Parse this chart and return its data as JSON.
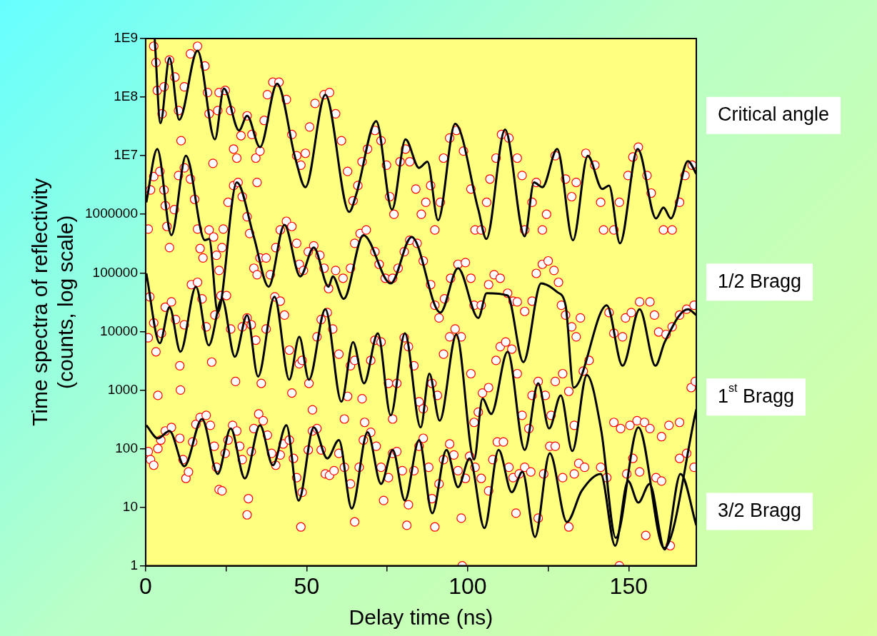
{
  "chart_data": {
    "type": "scatter",
    "xlabel": "Delay time (ns)",
    "ylabel": "Time spectra of reflectivity\n(counts, log scale)",
    "xlim": [
      0,
      171
    ],
    "ylim": [
      1,
      1000000000
    ],
    "log": "y",
    "grid": false,
    "legend": false,
    "xticks": [
      0,
      {
        "value": 25,
        "label": null
      },
      50,
      {
        "value": 75,
        "label": null
      },
      100,
      {
        "value": 125,
        "label": null
      },
      150
    ],
    "yticks": [
      1,
      10,
      100,
      1000,
      10000,
      100000,
      1000000,
      {
        "value": 10000000,
        "label": "1E7"
      },
      {
        "value": 100000000,
        "label": "1E8"
      },
      {
        "value": 1000000000,
        "label": "1E9"
      }
    ],
    "series": [
      {
        "name": "Critical angle",
        "type": "scatter",
        "marker": "circle",
        "color": "#ff0000",
        "x": [
          2.5,
          3.2,
          3.6,
          5.1,
          5.7,
          7.4,
          9.1,
          10.2,
          11,
          12,
          13.9,
          16.1,
          18.4,
          19.2,
          19.7,
          20.9,
          22.4,
          22.8,
          24.7,
          26.4,
          27.3,
          28.3,
          29.6,
          31.5,
          33,
          34.2,
          34.6,
          35.5,
          36.8,
          37.8,
          39.5,
          41.4,
          43.7,
          45.4,
          46.9,
          48.2,
          49.6,
          50.9,
          52.6,
          55.4,
          57.1,
          59,
          60.8,
          62.7,
          64.4,
          65.9,
          67.2,
          68.9,
          71.2,
          73.1,
          74.8,
          75.8,
          77.1,
          79,
          80.7,
          82,
          83.9,
          85.6,
          87,
          88.5,
          89.8,
          91.5,
          92.5,
          94.4,
          96.5,
          98.7,
          101,
          102.3,
          104.2,
          105.9,
          106.9,
          108.8,
          110.5,
          112.8,
          115.4,
          116.9,
          117.7,
          120,
          121.3,
          123.2,
          124.5,
          127.2,
          130.4,
          132.3,
          133.7,
          136.7,
          139.5,
          141.3,
          142.2,
          145.4,
          147.1,
          149.8,
          151.3,
          153,
          155.7,
          157,
          160.8,
          163.5,
          165.8,
          167.5,
          169.7
        ],
        "values": [
          740000000.0,
          390000000.0,
          130000000.0,
          52000000.0,
          150000000.0,
          430000000.0,
          220000000.0,
          59000000.0,
          18000000.0,
          150000000.0,
          550000000.0,
          740000000.0,
          340000000.0,
          120000000.0,
          52000000.0,
          7400000.0,
          59000000.0,
          120000000.0,
          130000000.0,
          59000000.0,
          13000000.0,
          9100000.0,
          22000000.0,
          48000000.0,
          23000000.0,
          9100000.0,
          3500000.0,
          12000000.0,
          40000000.0,
          110000000.0,
          180000000.0,
          180000000.0,
          91000000.0,
          23000000.0,
          10000000.0,
          6900000.0,
          11000000.0,
          31000000.0,
          78000000.0,
          110000000.0,
          120000000.0,
          52000000.0,
          18000000.0,
          5400000.0,
          1700000.0,
          3100000.0,
          7900000.0,
          13000000.0,
          27000000.0,
          18000000.0,
          6900000.0,
          2000000.0,
          1000000.0,
          7900000.0,
          13000000.0,
          7900000.0,
          2700000.0,
          1000000.0,
          1600000.0,
          3100000.0,
          540000.0,
          1600000.0,
          9100000.0,
          20000000.0,
          27000000.0,
          12000000.0,
          2700000.0,
          540000.0,
          540000.0,
          1600000.0,
          4000000.0,
          9100000.0,
          23000000.0,
          20000000.0,
          9100000.0,
          4600000.0,
          540000.0,
          1600000.0,
          3500000.0,
          540000.0,
          1000000.0,
          10000000.0,
          4000000.0,
          2000000.0,
          3500000.0,
          11000000.0,
          6900000.0,
          1600000.0,
          540000.0,
          540000.0,
          1600000.0,
          4600000.0,
          9500000.0,
          14000000.0,
          4600000.0,
          2300000.0,
          540000.0,
          540000.0,
          1600000.0,
          4600000.0,
          6900000.0
        ]
      },
      {
        "name": "1/2 Bragg",
        "type": "scatter",
        "marker": "circle",
        "color": "#ff0000",
        "x": [
          0.8,
          1.5,
          2.5,
          4.4,
          5.7,
          6.1,
          6.6,
          7.4,
          8.9,
          10.2,
          12,
          13.9,
          15.2,
          16.1,
          16.9,
          17.8,
          19.7,
          21.1,
          22,
          22.8,
          23.7,
          24.1,
          25.6,
          27.3,
          28.7,
          30,
          31.5,
          32.3,
          33.6,
          34.6,
          35.5,
          37.4,
          38.7,
          40.4,
          41.8,
          43.7,
          45.4,
          46.9,
          47.7,
          49,
          50.5,
          52.2,
          54.1,
          55.4,
          56.8,
          59,
          61.3,
          63.6,
          64.9,
          66.6,
          68.5,
          71.2,
          72.5,
          74.4,
          76.7,
          78.4,
          80.3,
          82,
          84.3,
          86.2,
          88.5,
          89.8,
          91.1,
          92.8,
          94.7,
          97,
          99.3,
          101,
          102,
          104.2,
          106.5,
          108.2,
          110.1,
          112.4,
          114.1,
          115.4,
          117.7,
          120,
          121.3,
          123.2,
          125,
          126.8,
          128.2,
          129.1,
          130.4,
          132.3,
          133.7,
          135,
          143.9,
          145.4,
          148.1,
          149,
          150.8,
          153.4,
          156.6,
          158,
          159.3,
          161.6,
          163.5,
          165.8,
          168,
          170.3
        ],
        "values": [
          560000.0,
          2600000.0,
          4400000.0,
          5400000.0,
          2600000.0,
          1400000.0,
          620000.0,
          270000.0,
          1200000.0,
          4600000.0,
          6200000.0,
          4000000.0,
          1800000.0,
          560000.0,
          260000.0,
          180000.0,
          540000.0,
          410000.0,
          200000.0,
          110000.0,
          270000.0,
          560000.0,
          1600000.0,
          3100000.0,
          3500000.0,
          2000000.0,
          910000.0,
          470000.0,
          120000.0,
          93000.0,
          180000.0,
          180000.0,
          93000.0,
          270000.0,
          540000.0,
          760000.0,
          620000.0,
          320000.0,
          140000.0,
          110000.0,
          230000.0,
          290000.0,
          200000.0,
          120000.0,
          54000.0,
          110000.0,
          81000.0,
          120000.0,
          320000.0,
          470000.0,
          540000.0,
          230000.0,
          140000.0,
          81000.0,
          81000.0,
          120000.0,
          230000.0,
          360000.0,
          320000.0,
          160000.0,
          63000.0,
          28000.0,
          17000.0,
          36000.0,
          81000.0,
          140000.0,
          150000.0,
          81000.0,
          28000.0,
          28000.0,
          63000.0,
          93000.0,
          81000.0,
          45000.0,
          33000.0,
          32000.0,
          22000.0,
          33000.0,
          98000.0,
          140000.0,
          160000.0,
          110000.0,
          69000.0,
          28000.0,
          19000.0,
          12000.0,
          8100.0,
          17000.0,
          21000.0,
          9300.0,
          8100.0,
          17000.0,
          21000.0,
          32000.0,
          32000.0,
          19000.0,
          9800.0,
          8900.0,
          12000.0,
          19000.0,
          24000.0,
          28000.0
        ]
      },
      {
        "name": "1$^{st}$ Bragg",
        "type": "scatter",
        "marker": "circle",
        "color": "#ff0000",
        "x": [
          0.8,
          1.3,
          2.5,
          3.2,
          3.8,
          4.9,
          6.1,
          8,
          9.3,
          10.6,
          10.8,
          12,
          14.2,
          16.1,
          17.5,
          18.8,
          20.5,
          21.5,
          23.4,
          25.1,
          26.4,
          27.9,
          30,
          31.5,
          32.8,
          34.2,
          35.9,
          37.4,
          40.1,
          41.8,
          43.1,
          44.6,
          45.4,
          47.7,
          48.6,
          50.7,
          51.8,
          53.2,
          54.5,
          56.4,
          58.1,
          60,
          61.7,
          62.7,
          63.6,
          64.9,
          67.2,
          68,
          69.9,
          71.2,
          73.1,
          75.4,
          76.7,
          78,
          80.3,
          81.6,
          83.3,
          84.9,
          86.2,
          88.9,
          90.6,
          92.5,
          94.4,
          96.1,
          98,
          101,
          102,
          103.3,
          104.6,
          106.5,
          108.8,
          110.1,
          111.8,
          113.7,
          115.4,
          116.9,
          119,
          120,
          121.9,
          124.1,
          125.9,
          127.2,
          129.5,
          131.4,
          133.1,
          135.9,
          137.7,
          145.4,
          147.5,
          150.4,
          152.6,
          154.9,
          156.6,
          160.2,
          162.5,
          165.8,
          169.4,
          170.7
        ],
        "values": [
          7800.0,
          39000.0,
          14000.0,
          4500.0,
          810,
          9300.0,
          26000.0,
          32000.0,
          16000.0,
          2600.0,
          1000.0,
          13000.0,
          63000.0,
          69000.0,
          36000.0,
          12000.0,
          3000.0,
          19000.0,
          41000.0,
          41000.0,
          11000.0,
          1400.0,
          12000.0,
          17000.0,
          13000.0,
          7100.0,
          1300.0,
          11000.0,
          39000.0,
          33000.0,
          19000.0,
          4800.0,
          890,
          2800.0,
          3200.0,
          1300.0,
          460,
          8100.0,
          16000.0,
          21000.0,
          11000.0,
          4100.0,
          320,
          780,
          2600.0,
          3200.0,
          710,
          280,
          3200.0,
          7100.0,
          6600.0,
          1300.0,
          320,
          1300.0,
          7800.0,
          5500.0,
          2600.0,
          630,
          480,
          1300.0,
          810,
          4100.0,
          8100.0,
          11000.0,
          8100.0,
          1900.0,
          280,
          420,
          890,
          1100.0,
          3200.0,
          5500.0,
          6600.0,
          5000.0,
          1900.0,
          370,
          220,
          810,
          1400.0,
          810,
          370,
          1400.0,
          1900.0,
          950,
          250,
          2100.0,
          3200.0,
          280,
          220,
          250,
          300,
          280,
          220,
          160,
          250,
          280,
          1100.0,
          1400.0
        ]
      },
      {
        "name": "3/2 Bragg",
        "type": "scatter",
        "marker": "circle",
        "color": "#ff0000",
        "x": [
          0.8,
          1.5,
          2.5,
          3.8,
          4.7,
          6.1,
          8,
          10.6,
          11.6,
          12.5,
          13.3,
          14.6,
          15.6,
          16.9,
          18.8,
          20.1,
          21.3,
          22,
          22.8,
          23.7,
          24.7,
          25.6,
          27,
          28.3,
          29.2,
          30,
          31.5,
          31.9,
          32.8,
          33.6,
          35.1,
          36.5,
          37.8,
          39.1,
          40.4,
          41.8,
          42.7,
          44.6,
          45.9,
          46.9,
          48.2,
          48.6,
          50.5,
          51.8,
          53.2,
          54.5,
          55.8,
          57.1,
          58.5,
          60,
          61.7,
          63.6,
          64.9,
          66.3,
          67.6,
          69.9,
          71.6,
          73.1,
          73.9,
          75.4,
          76.7,
          78,
          79.7,
          81.1,
          81.6,
          83.3,
          84.9,
          86.2,
          87.9,
          88.9,
          89.8,
          91.1,
          92.5,
          94.4,
          95.7,
          97,
          98,
          98.3,
          99.3,
          100.6,
          102.3,
          104.2,
          106.5,
          107.8,
          109.2,
          111.1,
          112.8,
          114.1,
          115,
          116,
          117.7,
          119.6,
          121.9,
          123.6,
          125.5,
          127.2,
          129.5,
          131.4,
          133.1,
          134.5,
          136.3,
          141.3,
          143.2,
          147.1,
          149.4,
          151.3,
          153.4,
          155.3,
          158.5,
          160.2,
          162.9,
          165.8,
          168,
          170.3
        ],
        "values": [
          89,
          65,
          52,
          100,
          140,
          200,
          230,
          150,
          65,
          31,
          40,
          130,
          260,
          340,
          370,
          250,
          110,
          48,
          20,
          19,
          83,
          140,
          250,
          200,
          110,
          65,
          7.4,
          14,
          89,
          220,
          390,
          300,
          170,
          83,
          52,
          78,
          120,
          140,
          68,
          32,
          4.6,
          18,
          95,
          200,
          220,
          95,
          37,
          35,
          42,
          83,
          48,
          25,
          5.6,
          48,
          140,
          190,
          110,
          48,
          13,
          32,
          83,
          89,
          42,
          4.9,
          11,
          42,
          110,
          150,
          48,
          14,
          4.6,
          25,
          65,
          120,
          78,
          42,
          6.5,
          1,
          31,
          74,
          48,
          31,
          19,
          65,
          130,
          130,
          48,
          32,
          7.9,
          37,
          48,
          40,
          6.5,
          37,
          110,
          110,
          32,
          4.6,
          37,
          56,
          48,
          48,
          32,
          1,
          37,
          68,
          40,
          3.3,
          32,
          28,
          2.2,
          68,
          83,
          48
        ]
      },
      {
        "type": "line",
        "marker": "none",
        "line_style": "solid",
        "color": "#000000",
        "x": [
          2.8,
          4.6,
          7.4,
          10.4,
          16.1,
          21.5,
          24.3,
          29,
          31.5,
          35.5,
          40.8,
          46.5,
          49.6,
          55.8,
          63.2,
          65.4,
          71.6,
          76.5,
          80.7,
          84.9,
          87.5,
          90.8,
          96.1,
          103.3,
          105.8,
          111.6,
          117.7,
          120.6,
          123.2,
          127.8,
          132.7,
          137.3,
          141.8,
          143.9,
          147.3,
          152.8,
          158.5,
          160.8,
          163.1,
          168.4,
          171
        ],
        "values": [
          1000000000.0,
          36000000.0,
          470000000.0,
          41000000.0,
          620000000.0,
          19000000.0,
          140000000.0,
          27000000.0,
          48000000.0,
          14000000.0,
          170000000.0,
          8900000.0,
          2900000.0,
          110000000.0,
          1100000.0,
          2200000.0,
          39000000.0,
          1200000.0,
          19000000.0,
          6200000.0,
          7900000.0,
          790000.0,
          35000000.0,
          1200000.0,
          380000.0,
          28000000.0,
          420000.0,
          3500000.0,
          2900000.0,
          13000000.0,
          360000.0,
          10000000.0,
          2700000.0,
          3100000.0,
          320000.0,
          13000000.0,
          850000.0,
          1300000.0,
          850000.0,
          8100000.0,
          4900000.0
        ]
      },
      {
        "type": "line",
        "marker": "none",
        "line_style": "solid",
        "color": "#000000",
        "x": [
          0.2,
          3.6,
          8,
          12.5,
          18.4,
          19.7,
          22.4,
          28.3,
          33.6,
          38.2,
          43.1,
          48,
          52.2,
          56.8,
          58.1,
          61.5,
          67.6,
          76.1,
          82.6,
          91.5,
          97,
          103.3,
          105.9,
          112.4,
          117.3,
          122.8,
          127.8,
          130.4,
          132.9,
          143.2,
          148.1,
          153.4,
          158.3,
          161.2,
          168.4,
          171
        ],
        "values": [
          1600000.0,
          13000000.0,
          440000.0,
          10000000.0,
          360000.0,
          380000.0,
          21000.0,
          3500000.0,
          410000.0,
          58000.0,
          660000.0,
          87000.0,
          270000.0,
          58000.0,
          87000.0,
          36000.0,
          440000.0,
          66000.0,
          410000.0,
          21000.0,
          120000.0,
          17000.0,
          45000.0,
          41000.0,
          3000.0,
          66000.0,
          47000.0,
          28000.0,
          1100.0,
          28000.0,
          2600.0,
          24000.0,
          2600.0,
          6600.0,
          24000.0,
          19000.0
        ]
      },
      {
        "type": "line",
        "marker": "none",
        "line_style": "solid",
        "color": "#000000",
        "x": [
          0.2,
          4.4,
          7.4,
          10.8,
          15.6,
          19.6,
          23.7,
          27.7,
          31.5,
          34.9,
          40,
          44.6,
          47.7,
          50.7,
          55.8,
          60.8,
          64.4,
          67.8,
          72.1,
          76.1,
          80.5,
          85.4,
          88.1,
          91.3,
          96.5,
          102,
          104.6,
          107.3,
          112.4,
          117.7,
          121.9,
          125.3,
          128.9,
          132.5,
          137,
          141.5,
          146,
          153,
          161,
          171
        ],
        "values": [
          98000.0,
          6300.0,
          26000.0,
          4500.0,
          58000.0,
          5800.0,
          36000.0,
          3700.0,
          19000.0,
          1700.0,
          39000.0,
          1500.0,
          8100.0,
          1500.0,
          24000.0,
          630,
          6600.0,
          1300.0,
          9300.0,
          370,
          9300.0,
          230,
          1900.0,
          300,
          8900.0,
          65,
          710,
          390,
          4500.0,
          95,
          1300.0,
          220,
          810,
          91,
          1800.0,
          200,
          3,
          230,
          2,
          470
        ]
      },
      {
        "type": "line",
        "marker": "none",
        "line_style": "solid",
        "color": "#000000",
        "x": [
          0.2,
          3.8,
          7.4,
          12,
          17.5,
          22.4,
          26.4,
          30.8,
          35.5,
          39.5,
          43.7,
          47.5,
          52.2,
          56.4,
          60,
          64,
          68.9,
          73.1,
          76.7,
          80.5,
          84.9,
          89,
          93.4,
          97,
          100.6,
          105.2,
          109.6,
          113.7,
          117,
          120.9,
          125.5,
          130.8,
          135.4,
          141.3,
          145.8,
          149.8,
          153,
          156.5,
          161.2,
          166.1,
          171
        ],
        "values": [
          250,
          150,
          200,
          50,
          320,
          37,
          220,
          31,
          250,
          52,
          250,
          13,
          230,
          68,
          140,
          9.5,
          190,
          25,
          95,
          13,
          140,
          7.9,
          95,
          22,
          68,
          4.4,
          95,
          18,
          40,
          3.1,
          83,
          5.6,
          19,
          37,
          2.2,
          28,
          12,
          25,
          1.9,
          37,
          4.9
        ]
      }
    ]
  }
}
